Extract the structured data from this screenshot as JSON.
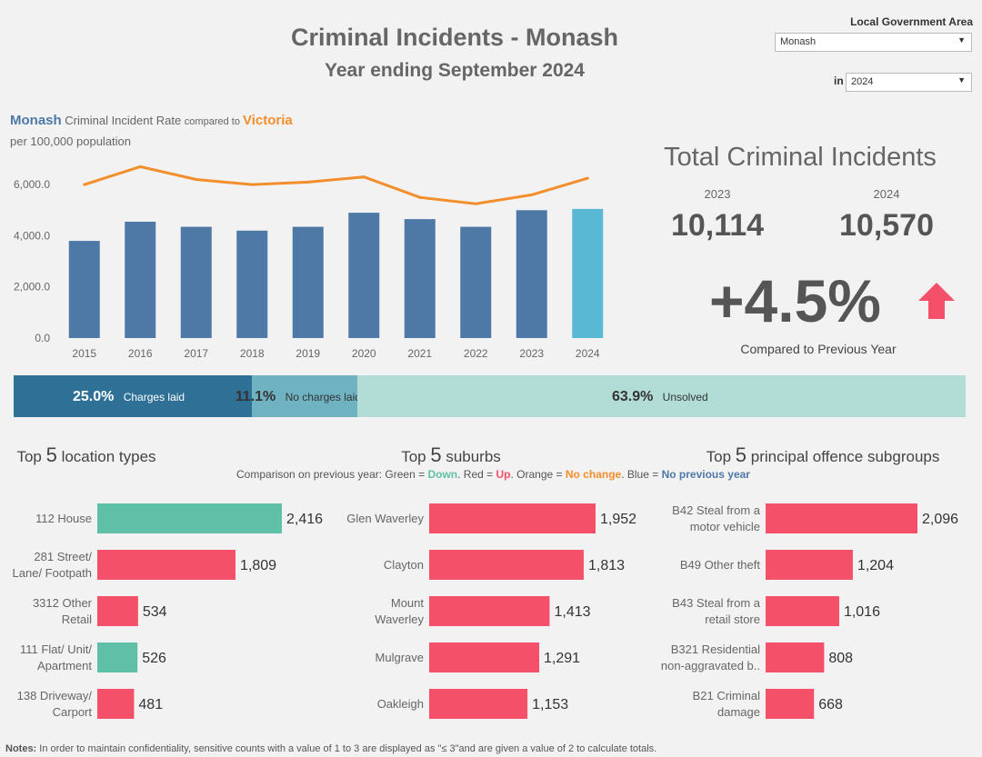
{
  "header": {
    "title": "Criminal Incidents - Monash",
    "subtitle": "Year ending September 2024"
  },
  "filters": {
    "lga_label": "Local Government Area",
    "lga_value": "Monash",
    "in_label": "in",
    "year_value": "2024"
  },
  "rate_chart": {
    "title_monash": "Monash",
    "title_mid": " Criminal Incident Rate ",
    "title_compared": "compared to ",
    "title_victoria": "Victoria",
    "subtitle": "per 100,000 population"
  },
  "totals": {
    "title": "Total Criminal Incidents",
    "prev_year": "2023",
    "prev_value": "10,114",
    "curr_year": "2024",
    "curr_value": "10,570",
    "change": "+4.5%",
    "change_label": "Compared to Previous Year"
  },
  "outcomes": [
    {
      "pct": "25.0%",
      "label": "Charges laid",
      "share": 0.25,
      "color": "#2f7096",
      "text_color": "#ffffff"
    },
    {
      "pct": "11.1%",
      "label": "No charges laid",
      "share": 0.111,
      "color": "#6fb3c3",
      "text_color": "#333333"
    },
    {
      "pct": "63.9%",
      "label": "Unsolved",
      "share": 0.639,
      "color": "#b2ddd6",
      "text_color": "#333333"
    }
  ],
  "sections": {
    "loc_pre": "Top ",
    "loc_num": "5",
    "loc_post": " location types",
    "sub_pre": "Top ",
    "sub_num": "5",
    "sub_post": " suburbs",
    "off_pre": "Top ",
    "off_num": "5",
    "off_post": " principal offence subgroups"
  },
  "legend": {
    "prefix": "Comparison on previous year: Green = ",
    "down": "Down",
    "mid1": ". Red = ",
    "up": "Up",
    "mid2": ". Orange = ",
    "nochange": "No change",
    "mid3": ". Blue = ",
    "noprev": "No previous year",
    "colors": {
      "down": "#5fbfa7",
      "up": "#f5506a",
      "nochange": "#f28e2b",
      "noprev": "#4e79a7"
    }
  },
  "notes": {
    "label": "Notes:",
    "text": " In order to maintain confidentiality, sensitive counts with a value of 1 to 3  are displayed as \"≤ 3\"and are given a value of 2 to calculate totals."
  },
  "chart_data": [
    {
      "type": "bar",
      "title": "Monash Criminal Incident Rate compared to Victoria",
      "subtitle": "per 100,000 population",
      "categories": [
        "2015",
        "2016",
        "2017",
        "2018",
        "2019",
        "2020",
        "2021",
        "2022",
        "2023",
        "2024"
      ],
      "series": [
        {
          "name": "Monash",
          "type": "bar",
          "values": [
            3800,
            4550,
            4350,
            4200,
            4350,
            4900,
            4650,
            4350,
            5000,
            5050
          ],
          "color": "#4e79a7",
          "highlight_color": "#59b8d4"
        },
        {
          "name": "Victoria",
          "type": "line",
          "values": [
            6000,
            6700,
            6200,
            6000,
            6100,
            6300,
            5500,
            5250,
            5600,
            6250
          ],
          "color": "#f28e2b"
        }
      ],
      "y_ticks": [
        "0.0",
        "2,000.0",
        "4,000.0",
        "6,000.0"
      ],
      "ylim": [
        0,
        7000
      ]
    },
    {
      "type": "bar",
      "title": "Top 5 location types",
      "categories": [
        "112 House",
        "281 Street/ Lane/ Footpath",
        "3312 Other Retail",
        "111 Flat/ Unit/ Apartment",
        "138 Driveway/ Carport"
      ],
      "label_lines": [
        [
          "112 House"
        ],
        [
          "281 Street/",
          "Lane/ Footpath"
        ],
        [
          "3312 Other",
          "Retail"
        ],
        [
          "111 Flat/ Unit/",
          "Apartment"
        ],
        [
          "138 Driveway/",
          "Carport"
        ]
      ],
      "values": [
        2416,
        1809,
        534,
        526,
        481
      ],
      "value_labels": [
        "2,416",
        "1,809",
        "534",
        "526",
        "481"
      ],
      "trend": [
        "down",
        "up",
        "up",
        "down",
        "up"
      ]
    },
    {
      "type": "bar",
      "title": "Top 5 suburbs",
      "categories": [
        "Glen Waverley",
        "Clayton",
        "Mount Waverley",
        "Mulgrave",
        "Oakleigh"
      ],
      "label_lines": [
        [
          "Glen Waverley"
        ],
        [
          "Clayton"
        ],
        [
          "Mount",
          "Waverley"
        ],
        [
          "Mulgrave"
        ],
        [
          "Oakleigh"
        ]
      ],
      "values": [
        1952,
        1813,
        1413,
        1291,
        1153
      ],
      "value_labels": [
        "1,952",
        "1,813",
        "1,413",
        "1,291",
        "1,153"
      ],
      "trend": [
        "up",
        "up",
        "up",
        "up",
        "up"
      ]
    },
    {
      "type": "bar",
      "title": "Top 5 principal offence subgroups",
      "categories": [
        "B42 Steal from a motor vehicle",
        "B49 Other theft",
        "B43 Steal from a retail store",
        "B321 Residential non-aggravated b..",
        "B21 Criminal damage"
      ],
      "label_lines": [
        [
          "B42 Steal from a",
          "motor vehicle"
        ],
        [
          "B49 Other theft"
        ],
        [
          "B43 Steal from a",
          "retail store"
        ],
        [
          "B321 Residential",
          "non-aggravated b.."
        ],
        [
          "B21 Criminal",
          "damage"
        ]
      ],
      "values": [
        2096,
        1204,
        1016,
        808,
        668
      ],
      "value_labels": [
        "2,096",
        "1,204",
        "1,016",
        "808",
        "668"
      ],
      "trend": [
        "up",
        "up",
        "up",
        "up",
        "up"
      ]
    }
  ]
}
